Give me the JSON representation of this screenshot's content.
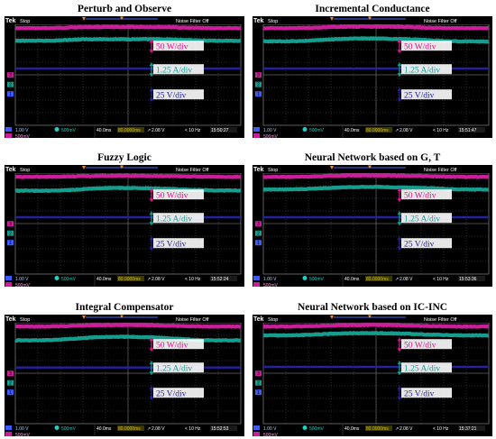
{
  "figure": {
    "panels": [
      {
        "title": "Perturb and Observe",
        "timestamp": "15:50:27"
      },
      {
        "title": "Incremental Conductance",
        "timestamp": "15:51:47"
      },
      {
        "title": "Fuzzy Logic",
        "timestamp": "15:52:24"
      },
      {
        "title": "Neural Network based on G, T",
        "timestamp": "15:53:36"
      },
      {
        "title": "Integral Compensator",
        "timestamp": "15:52:53"
      },
      {
        "title": "Neural Network based on IC-INC",
        "timestamp": "15:37:21"
      }
    ],
    "scope": {
      "brand": "Tek",
      "state": "Stop",
      "filter": "Noise Filter Off",
      "timebase": "40.0ms",
      "trigger_pos": "80.0000ms",
      "trigger_level": "2.08 V",
      "frequency": "< 10 Hz",
      "ch1_scale": "1.00 V",
      "ch3_scale": "500mV",
      "ch2_scale": "500mV",
      "ch1_id": "1",
      "ch2_id": "2",
      "ch3_id": "3",
      "ch4_id": "4",
      "trig_glyph": "↗"
    },
    "labels": {
      "power": "50 W/div",
      "current": "1.25 A/div",
      "voltage": "25 V/div"
    },
    "colors": {
      "power": "#cc1d9b",
      "current": "#159e8e",
      "voltage": "#24239f",
      "label_power": "#e0148c",
      "label_current": "#14a090",
      "label_voltage": "#25229c"
    }
  },
  "chart_data": [
    {
      "type": "line",
      "title": "Perturb and Observe",
      "series": [
        {
          "name": "power",
          "values": [
            0.3,
            0.3,
            0.3,
            0.28,
            0.24,
            0.22,
            0.22,
            0.22,
            0.22,
            0.22,
            0.22,
            0.23,
            0.26,
            0.28,
            0.3,
            0.3,
            0.3
          ]
        },
        {
          "name": "current",
          "values": [
            1.3,
            1.3,
            1.3,
            1.28,
            1.22,
            1.18,
            1.18,
            1.18,
            1.18,
            1.18,
            1.18,
            1.2,
            1.24,
            1.27,
            1.3,
            1.3,
            1.3
          ]
        },
        {
          "name": "voltage",
          "values": [
            3.5,
            3.5,
            3.5,
            3.5,
            3.5,
            3.5,
            3.5,
            3.5,
            3.5,
            3.5,
            3.5,
            3.5,
            3.5,
            3.5,
            3.5,
            3.5,
            3.5
          ]
        }
      ]
    },
    {
      "type": "line",
      "title": "Incremental Conductance",
      "series": [
        {
          "name": "power",
          "values": [
            0.3,
            0.3,
            0.3,
            0.28,
            0.25,
            0.21,
            0.19,
            0.18,
            0.18,
            0.19,
            0.21,
            0.24,
            0.27,
            0.29,
            0.3,
            0.3,
            0.3
          ]
        },
        {
          "name": "current",
          "values": [
            1.35,
            1.35,
            1.34,
            1.3,
            1.24,
            1.18,
            1.14,
            1.12,
            1.12,
            1.14,
            1.17,
            1.22,
            1.27,
            1.32,
            1.35,
            1.36,
            1.36
          ]
        },
        {
          "name": "voltage",
          "values": [
            3.5,
            3.5,
            3.5,
            3.5,
            3.5,
            3.5,
            3.5,
            3.5,
            3.5,
            3.5,
            3.5,
            3.5,
            3.5,
            3.5,
            3.5,
            3.5,
            3.5
          ]
        }
      ]
    },
    {
      "type": "line",
      "title": "Fuzzy Logic",
      "series": [
        {
          "name": "power",
          "values": [
            0.3,
            0.3,
            0.29,
            0.28,
            0.26,
            0.24,
            0.22,
            0.22,
            0.22,
            0.22,
            0.23,
            0.24,
            0.26,
            0.28,
            0.29,
            0.3,
            0.3
          ]
        },
        {
          "name": "current",
          "values": [
            1.4,
            1.4,
            1.4,
            1.38,
            1.34,
            1.26,
            1.2,
            1.18,
            1.18,
            1.19,
            1.22,
            1.26,
            1.3,
            1.34,
            1.37,
            1.38,
            1.38
          ]
        },
        {
          "name": "voltage",
          "values": [
            3.5,
            3.5,
            3.5,
            3.5,
            3.5,
            3.5,
            3.5,
            3.5,
            3.5,
            3.5,
            3.5,
            3.5,
            3.5,
            3.5,
            3.5,
            3.5,
            3.5
          ]
        }
      ]
    },
    {
      "type": "line",
      "title": "Neural Network based on G, T",
      "series": [
        {
          "name": "power",
          "values": [
            0.3,
            0.3,
            0.3,
            0.28,
            0.25,
            0.22,
            0.2,
            0.19,
            0.19,
            0.2,
            0.21,
            0.23,
            0.26,
            0.28,
            0.3,
            0.3,
            0.3
          ]
        },
        {
          "name": "current",
          "values": [
            1.3,
            1.3,
            1.29,
            1.26,
            1.21,
            1.16,
            1.12,
            1.1,
            1.1,
            1.12,
            1.14,
            1.17,
            1.21,
            1.25,
            1.29,
            1.3,
            1.3
          ]
        },
        {
          "name": "voltage",
          "values": [
            3.5,
            3.5,
            3.5,
            3.5,
            3.5,
            3.5,
            3.5,
            3.5,
            3.5,
            3.5,
            3.5,
            3.5,
            3.5,
            3.5,
            3.5,
            3.5,
            3.5
          ]
        }
      ]
    },
    {
      "type": "line",
      "title": "Integral Compensator",
      "series": [
        {
          "name": "power",
          "values": [
            0.3,
            0.3,
            0.3,
            0.28,
            0.25,
            0.21,
            0.19,
            0.18,
            0.18,
            0.19,
            0.21,
            0.24,
            0.27,
            0.29,
            0.3,
            0.3,
            0.3
          ]
        },
        {
          "name": "current",
          "values": [
            1.4,
            1.4,
            1.39,
            1.35,
            1.28,
            1.2,
            1.14,
            1.12,
            1.12,
            1.14,
            1.18,
            1.24,
            1.31,
            1.36,
            1.4,
            1.4,
            1.4
          ]
        },
        {
          "name": "voltage",
          "values": [
            3.55,
            3.55,
            3.55,
            3.55,
            3.55,
            3.55,
            3.55,
            3.55,
            3.55,
            3.55,
            3.55,
            3.55,
            3.55,
            3.55,
            3.55,
            3.55,
            3.55
          ]
        }
      ]
    },
    {
      "type": "line",
      "title": "Neural Network based on IC-INC",
      "series": [
        {
          "name": "power",
          "values": [
            0.3,
            0.3,
            0.3,
            0.28,
            0.25,
            0.21,
            0.19,
            0.18,
            0.18,
            0.19,
            0.21,
            0.24,
            0.27,
            0.29,
            0.3,
            0.3,
            0.3
          ]
        },
        {
          "name": "current",
          "values": [
            1.0,
            1.0,
            1.0,
            0.97,
            0.92,
            0.87,
            0.84,
            0.83,
            0.83,
            0.84,
            0.87,
            0.91,
            0.95,
            0.98,
            1.0,
            1.0,
            1.0
          ]
        },
        {
          "name": "voltage",
          "values": [
            3.5,
            3.5,
            3.5,
            3.5,
            3.5,
            3.5,
            3.5,
            3.5,
            3.5,
            3.5,
            3.5,
            3.5,
            3.5,
            3.5,
            3.5,
            3.5,
            3.5
          ]
        }
      ]
    }
  ]
}
